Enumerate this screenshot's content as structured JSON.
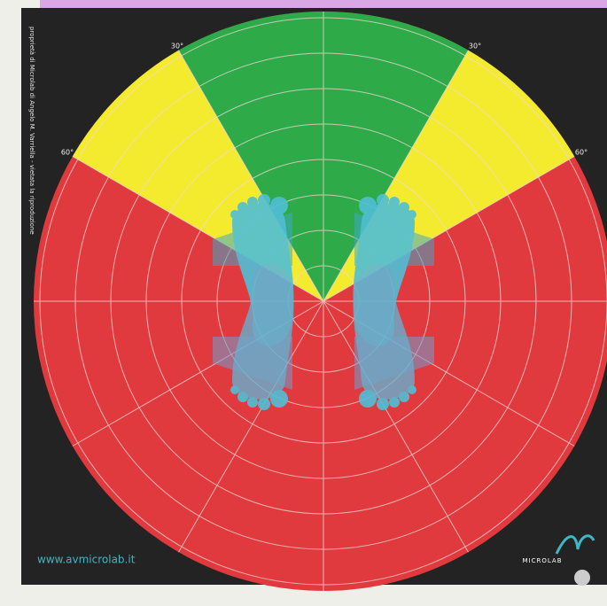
{
  "diagram": {
    "angle_labels": [
      "30°",
      "30°",
      "60°",
      "60°"
    ],
    "side_text": "proprietà di Microlab di Angelo M. Varriella - vietata la riproduzione",
    "website": "www.avmicrolab.it",
    "logo": "MICROLAB"
  }
}
